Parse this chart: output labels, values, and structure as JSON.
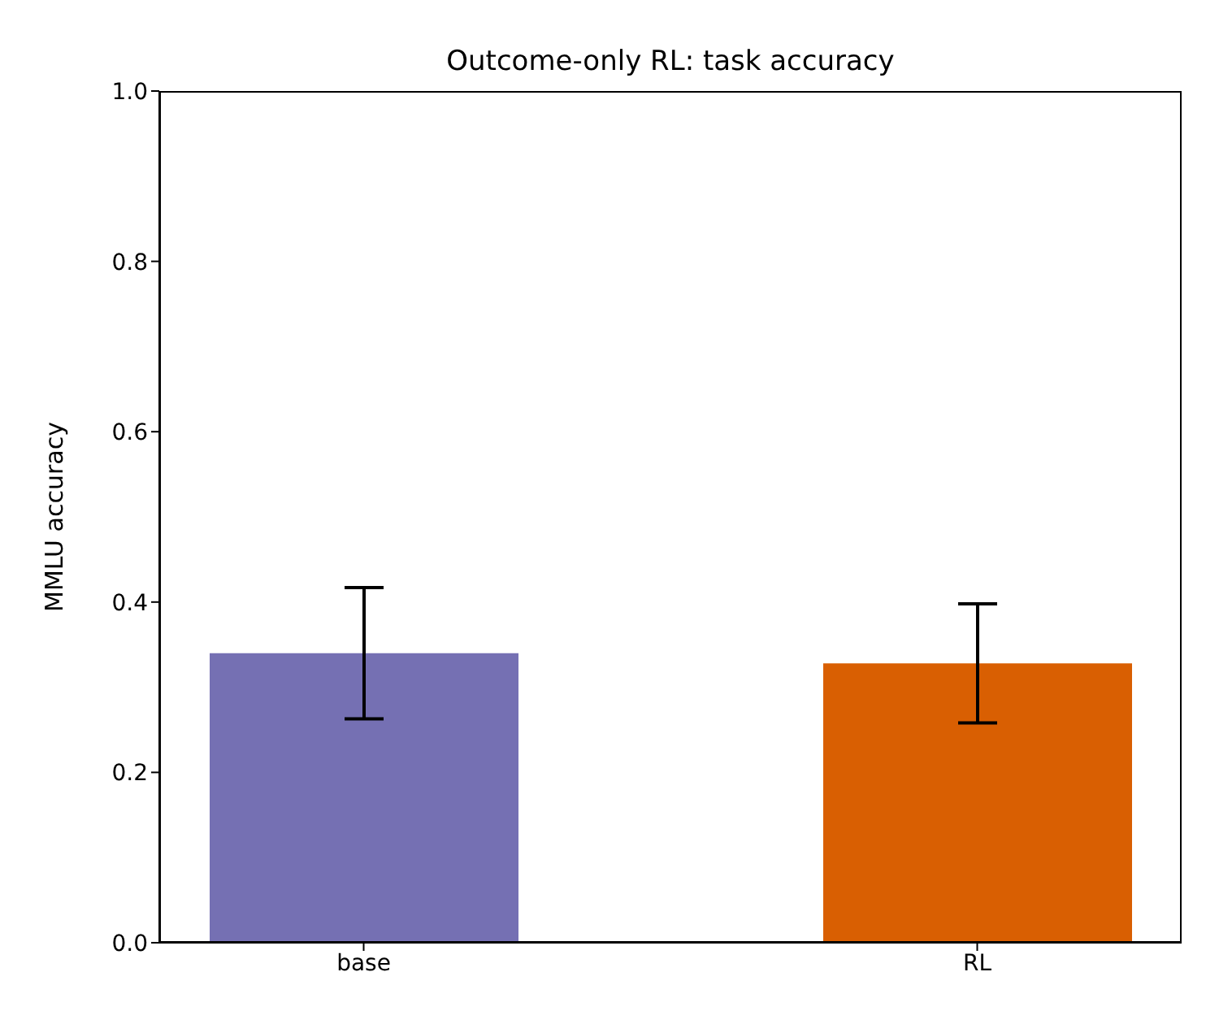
{
  "chart_data": {
    "type": "bar",
    "title": "Outcome-only RL: task accuracy",
    "ylabel": "MMLU accuracy",
    "categories": [
      "base",
      "RL"
    ],
    "values": [
      0.34,
      0.328
    ],
    "errors": [
      0.077,
      0.07
    ],
    "colors": [
      "#7570b3",
      "#d95f02"
    ],
    "ylim": [
      0,
      1
    ],
    "yticks": [
      {
        "value": 0,
        "label": "0.0"
      },
      0.2,
      0.4,
      0.6,
      0.8,
      {
        "value": 1,
        "label": "1.0"
      }
    ],
    "grid": false
  }
}
